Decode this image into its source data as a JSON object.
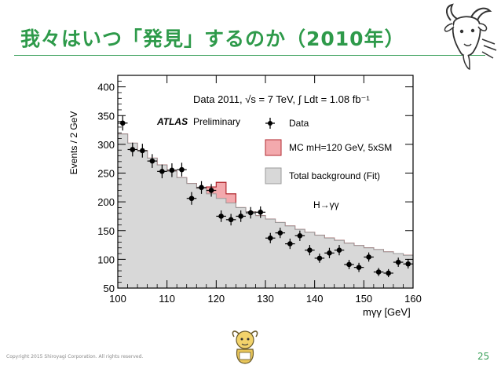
{
  "slide": {
    "title": "我々はいつ「発見」するのか（2010年）",
    "copyright": "Copyright 2015 Shiroyagi Corporation. All rights reserved.",
    "page_number": "25"
  },
  "chart_data": {
    "type": "histogram",
    "title": "Data 2011, √s = 7 TeV, ∫ Ldt = 1.08 fb⁻¹",
    "experiment_label": "ATLAS",
    "experiment_sublabel": "Preliminary",
    "channel_label": "H→γγ",
    "xlabel": "mγγ [GeV]",
    "ylabel": "Events / 2 GeV",
    "xlim": [
      100,
      160
    ],
    "ylim": [
      50,
      420
    ],
    "x_ticks": [
      100,
      110,
      120,
      130,
      140,
      150,
      160
    ],
    "x_tick_labels": [
      "100",
      "110",
      "120",
      "130",
      "140",
      "150",
      "160"
    ],
    "y_ticks": [
      50,
      100,
      150,
      200,
      250,
      300,
      350,
      400
    ],
    "y_tick_labels": [
      "50",
      "100",
      "150",
      "200",
      "250",
      "300",
      "350",
      "400"
    ],
    "legend": [
      {
        "key": "data",
        "label": "Data"
      },
      {
        "key": "signal",
        "label": "MC mH=120 GeV, 5xSM"
      },
      {
        "key": "background",
        "label": "Total background (Fit)"
      }
    ],
    "bin_edges": [
      100,
      102,
      104,
      106,
      108,
      110,
      112,
      114,
      116,
      118,
      120,
      122,
      124,
      126,
      128,
      130,
      132,
      134,
      136,
      138,
      140,
      142,
      144,
      146,
      148,
      150,
      152,
      154,
      156,
      158,
      160
    ],
    "background": [
      318,
      302,
      289,
      276,
      264,
      253,
      242,
      232,
      223,
      214,
      206,
      198,
      190,
      183,
      176,
      170,
      164,
      158,
      152,
      147,
      142,
      137,
      133,
      128,
      124,
      120,
      117,
      113,
      110,
      107
    ],
    "signal_total": [
      318,
      302,
      289,
      276,
      264,
      253,
      242,
      232,
      223,
      226,
      234,
      214,
      190,
      183,
      176,
      170,
      164,
      158,
      152,
      147,
      142,
      137,
      133,
      128,
      124,
      120,
      117,
      113,
      110,
      107
    ],
    "data_points": [
      {
        "x": 101,
        "y": 337,
        "err": 13
      },
      {
        "x": 103,
        "y": 291,
        "err": 12
      },
      {
        "x": 105,
        "y": 289,
        "err": 12
      },
      {
        "x": 107,
        "y": 271,
        "err": 12
      },
      {
        "x": 109,
        "y": 253,
        "err": 12
      },
      {
        "x": 111,
        "y": 255,
        "err": 12
      },
      {
        "x": 113,
        "y": 256,
        "err": 12
      },
      {
        "x": 115,
        "y": 206,
        "err": 11
      },
      {
        "x": 117,
        "y": 225,
        "err": 11
      },
      {
        "x": 119,
        "y": 220,
        "err": 11
      },
      {
        "x": 121,
        "y": 175,
        "err": 10
      },
      {
        "x": 123,
        "y": 169,
        "err": 10
      },
      {
        "x": 125,
        "y": 175,
        "err": 10
      },
      {
        "x": 127,
        "y": 181,
        "err": 10
      },
      {
        "x": 129,
        "y": 182,
        "err": 10
      },
      {
        "x": 131,
        "y": 137,
        "err": 9
      },
      {
        "x": 133,
        "y": 146,
        "err": 9
      },
      {
        "x": 135,
        "y": 127,
        "err": 9
      },
      {
        "x": 137,
        "y": 141,
        "err": 9
      },
      {
        "x": 139,
        "y": 116,
        "err": 9
      },
      {
        "x": 141,
        "y": 102,
        "err": 8
      },
      {
        "x": 143,
        "y": 111,
        "err": 9
      },
      {
        "x": 145,
        "y": 116,
        "err": 9
      },
      {
        "x": 147,
        "y": 91,
        "err": 8
      },
      {
        "x": 149,
        "y": 86,
        "err": 8
      },
      {
        "x": 151,
        "y": 104,
        "err": 8
      },
      {
        "x": 153,
        "y": 78,
        "err": 7
      },
      {
        "x": 155,
        "y": 76,
        "err": 7
      },
      {
        "x": 157,
        "y": 95,
        "err": 8
      },
      {
        "x": 159,
        "y": 92,
        "err": 8
      }
    ],
    "colors": {
      "background_fill": "#d8d8d8",
      "background_line": "#9a9a9a",
      "signal_fill": "#f3a9ad",
      "signal_line": "#b22a31",
      "data": "#000000"
    }
  }
}
